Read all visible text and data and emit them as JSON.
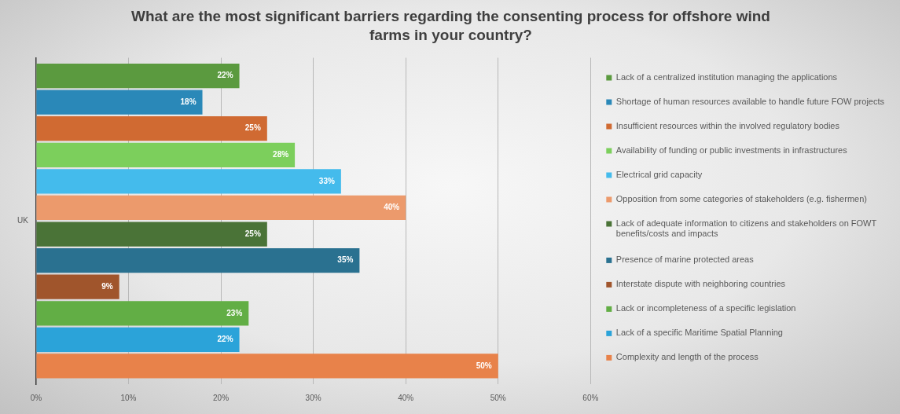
{
  "chart_data": {
    "type": "bar",
    "orientation": "horizontal",
    "title": "What are the most significant barriers regarding the consenting process for offshore wind farms in your country?",
    "categories": [
      "UK"
    ],
    "series": [
      {
        "name": "Lack of a centralized institution managing the applications",
        "color": "#5b9a3f",
        "values": [
          22
        ],
        "value_labels": [
          "22%"
        ]
      },
      {
        "name": "Shortage of human resources available to handle future FOW projects",
        "color": "#2a88b8",
        "values": [
          18
        ],
        "value_labels": [
          "18%"
        ]
      },
      {
        "name": "Insufficient resources within the involved regulatory bodies",
        "color": "#d06a32",
        "values": [
          25
        ],
        "value_labels": [
          "25%"
        ]
      },
      {
        "name": "Availability of funding or public investments in infrastructures",
        "color": "#7ccf5c",
        "values": [
          28
        ],
        "value_labels": [
          "28%"
        ]
      },
      {
        "name": "Electrical grid capacity",
        "color": "#44bbec",
        "values": [
          33
        ],
        "value_labels": [
          "33%"
        ]
      },
      {
        "name": "Opposition from some categories of stakeholders (e.g. fishermen)",
        "color": "#ec9a6c",
        "values": [
          40
        ],
        "value_labels": [
          "40%"
        ]
      },
      {
        "name": "Lack of adequate information to citizens and stakeholders on FOWT benefits/costs and impacts",
        "color": "#4a7337",
        "values": [
          25
        ],
        "value_labels": [
          "25%"
        ]
      },
      {
        "name": "Presence of marine protected areas",
        "color": "#2a7190",
        "values": [
          35
        ],
        "value_labels": [
          "35%"
        ]
      },
      {
        "name": "Interstate dispute with neighboring countries",
        "color": "#a0552c",
        "values": [
          9
        ],
        "value_labels": [
          "9%"
        ]
      },
      {
        "name": "Lack or incompleteness of a specific legislation",
        "color": "#62ae45",
        "values": [
          23
        ],
        "value_labels": [
          "23%"
        ]
      },
      {
        "name": "Lack of a specific Maritime Spatial Planning",
        "color": "#2ba3d9",
        "values": [
          22
        ],
        "value_labels": [
          "22%"
        ]
      },
      {
        "name": "Complexity and length of the process",
        "color": "#e8824a",
        "values": [
          50
        ],
        "value_labels": [
          "50%"
        ]
      }
    ],
    "xlim": [
      0,
      60
    ],
    "xticks": [
      {
        "value": 0,
        "label": "0%"
      },
      {
        "value": 10,
        "label": "10%"
      },
      {
        "value": 20,
        "label": "20%"
      },
      {
        "value": 30,
        "label": "30%"
      },
      {
        "value": 40,
        "label": "40%"
      },
      {
        "value": 50,
        "label": "50%"
      },
      {
        "value": 60,
        "label": "60%"
      }
    ],
    "grid": "x",
    "legend": "right"
  }
}
